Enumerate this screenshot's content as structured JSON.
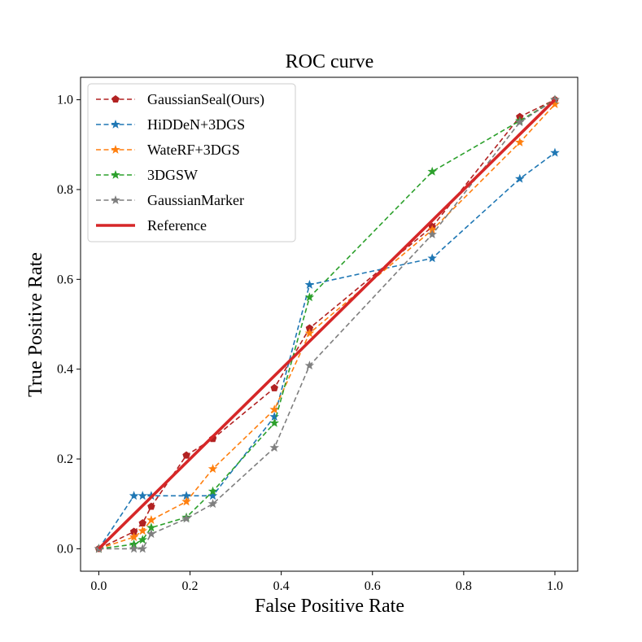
{
  "chart_data": {
    "type": "line",
    "title": "ROC curve",
    "xlabel": "False Positive Rate",
    "ylabel": "True Positive Rate",
    "xlim": [
      -0.04,
      1.05
    ],
    "ylim": [
      -0.05,
      1.05
    ],
    "xticks": [
      "0.0",
      "0.2",
      "0.4",
      "0.6",
      "0.8",
      "1.0"
    ],
    "yticks": [
      "0.0",
      "0.2",
      "0.4",
      "0.6",
      "0.8",
      "1.0"
    ],
    "grid": false,
    "legend_position": "top-left",
    "series": [
      {
        "name": "GaussianSeal(Ours)",
        "color": "#b22222",
        "marker": "pentagon",
        "style": "dashed",
        "x": [
          0.0,
          0.077,
          0.096,
          0.115,
          0.192,
          0.25,
          0.385,
          0.462,
          0.731,
          0.923,
          1.0
        ],
        "y": [
          0.0,
          0.038,
          0.057,
          0.094,
          0.208,
          0.245,
          0.358,
          0.491,
          0.717,
          0.962,
          1.0
        ]
      },
      {
        "name": "HiDDeN+3DGS",
        "color": "#1f77b4",
        "marker": "star",
        "style": "dashed",
        "x": [
          0.0,
          0.077,
          0.096,
          0.115,
          0.192,
          0.25,
          0.385,
          0.462,
          0.731,
          0.923,
          1.0
        ],
        "y": [
          0.0,
          0.118,
          0.118,
          0.118,
          0.118,
          0.118,
          0.294,
          0.588,
          0.647,
          0.824,
          0.882
        ]
      },
      {
        "name": "WateRF+3DGS",
        "color": "#ff7f0e",
        "marker": "star",
        "style": "dashed",
        "x": [
          0.0,
          0.077,
          0.096,
          0.115,
          0.192,
          0.25,
          0.385,
          0.462,
          0.731,
          0.923,
          1.0
        ],
        "y": [
          0.0,
          0.026,
          0.04,
          0.064,
          0.105,
          0.178,
          0.31,
          0.48,
          0.71,
          0.905,
          0.99
        ]
      },
      {
        "name": "3DGSW",
        "color": "#2ca02c",
        "marker": "star",
        "style": "dashed",
        "x": [
          0.0,
          0.077,
          0.096,
          0.115,
          0.192,
          0.25,
          0.385,
          0.462,
          0.731,
          0.923,
          1.0
        ],
        "y": [
          0.0,
          0.01,
          0.02,
          0.047,
          0.07,
          0.128,
          0.28,
          0.56,
          0.84,
          0.953,
          1.0
        ]
      },
      {
        "name": "GaussianMarker",
        "color": "#7f7f7f",
        "marker": "star",
        "style": "dashed",
        "x": [
          0.0,
          0.077,
          0.096,
          0.115,
          0.192,
          0.25,
          0.385,
          0.462,
          0.731,
          0.923,
          1.0
        ],
        "y": [
          0.0,
          0.0,
          0.0,
          0.033,
          0.067,
          0.1,
          0.225,
          0.408,
          0.7,
          0.95,
          1.0
        ]
      },
      {
        "name": "Reference",
        "color": "#d62728",
        "marker": "none",
        "style": "solid",
        "x": [
          0.0,
          1.0
        ],
        "y": [
          0.0,
          1.0
        ]
      }
    ]
  }
}
